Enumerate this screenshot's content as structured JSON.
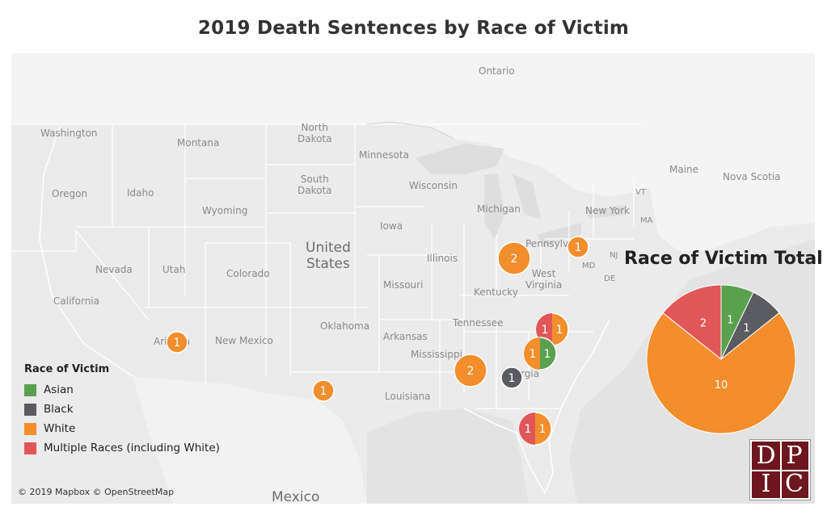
{
  "title": "2019 Death Sentences by Race of Victim",
  "map_labels": {
    "ontario": "Ontario",
    "washington": "Washington",
    "montana": "Montana",
    "north_dakota": "North\nDakota",
    "minnesota": "Minnesota",
    "south_dakota": "South\nDakota",
    "wisconsin": "Wisconsin",
    "michigan": "Michigan",
    "oregon": "Oregon",
    "idaho": "Idaho",
    "wyoming": "Wyoming",
    "iowa": "Iowa",
    "new_york": "New York",
    "maine": "Maine",
    "nova_scotia": "Nova Scotia",
    "vt": "VT",
    "ma": "MA",
    "nevada": "Nevada",
    "utah": "Utah",
    "colorado": "Colorado",
    "united_states": "United\nStates",
    "illinois": "Illinois",
    "pennsylvania": "Pennsylvania",
    "nj": "NJ",
    "md": "MD",
    "de": "DE",
    "california": "California",
    "missouri": "Missouri",
    "kentucky": "Kentucky",
    "west_virginia": "West\nVirginia",
    "oklahoma": "Oklahoma",
    "tennessee": "Tennessee",
    "arkansas": "Arkansas",
    "mississippi": "Mississippi",
    "arizona": "Arizona",
    "new_mexico": "New Mexico",
    "louisiana": "Louisiana",
    "georgia": "Georgia",
    "mexico": "Mexico"
  },
  "bubbles": [
    {
      "state": "Arizona",
      "values": [
        {
          "race": "White",
          "count": "1"
        }
      ]
    },
    {
      "state": "Texas",
      "values": [
        {
          "race": "White",
          "count": "1"
        }
      ]
    },
    {
      "state": "Ohio",
      "values": [
        {
          "race": "White",
          "count": "2"
        }
      ]
    },
    {
      "state": "Pennsylvania",
      "values": [
        {
          "race": "White",
          "count": "1"
        }
      ]
    },
    {
      "state": "Alabama",
      "values": [
        {
          "race": "White",
          "count": "2"
        }
      ]
    },
    {
      "state": "Georgia",
      "values": [
        {
          "race": "Black",
          "count": "1"
        }
      ]
    },
    {
      "state": "North Carolina",
      "values": [
        {
          "race": "Multiple Races (including White)",
          "count": "1"
        },
        {
          "race": "White",
          "count": "1"
        }
      ]
    },
    {
      "state": "South Carolina",
      "values": [
        {
          "race": "White",
          "count": "1"
        },
        {
          "race": "Asian",
          "count": "1"
        }
      ]
    },
    {
      "state": "Florida",
      "values": [
        {
          "race": "Multiple Races (including White)",
          "count": "1"
        },
        {
          "race": "White",
          "count": "1"
        }
      ]
    }
  ],
  "legend": {
    "title": "Race of Victim",
    "items": [
      {
        "label": "Asian",
        "color": "#59a14f"
      },
      {
        "label": "Black",
        "color": "#5b5c62"
      },
      {
        "label": "White",
        "color": "#f28e2b"
      },
      {
        "label": "Multiple Races (including White)",
        "color": "#e15759"
      }
    ]
  },
  "pie_title": "Race of Victim Total",
  "chart_data": {
    "type": "pie",
    "title": "Race of Victim Total",
    "slices": [
      {
        "label": "Asian",
        "value": 1,
        "color": "#59a14f"
      },
      {
        "label": "Black",
        "value": 1,
        "color": "#5b5c62"
      },
      {
        "label": "White",
        "value": 10,
        "color": "#f28e2b"
      },
      {
        "label": "Multiple Races (including White)",
        "value": 2,
        "color": "#e15759"
      }
    ]
  },
  "logo": {
    "letters": [
      "D",
      "P",
      "I",
      "C"
    ]
  },
  "credit": "© 2019 Mapbox © OpenStreetMap"
}
